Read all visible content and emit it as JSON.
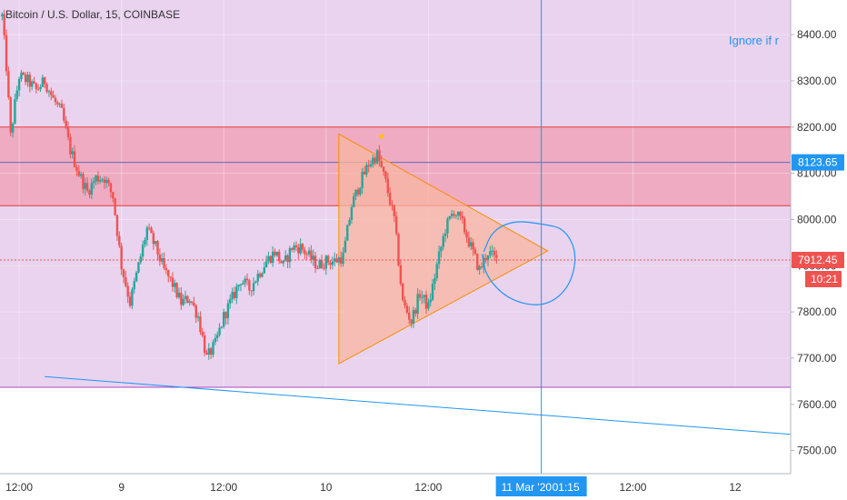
{
  "header": {
    "title": "Bitcoin / U.S. Dollar, 15, COINBASE"
  },
  "annotation": {
    "text": "Ignore if r",
    "color": "#2196f3"
  },
  "colors": {
    "up": "#26a69a",
    "down": "#ef5350",
    "background_zone": "#e9d3ef",
    "supply_zone": "#f0a3ba",
    "zone_line": "#e53935",
    "support_line": "#ab47bc",
    "triangle_fill": "#f8b6a0",
    "triangle_stroke": "#fb8c00",
    "trendline": "#2196f3",
    "crosshair": "#2196f3",
    "last_price_tag": "#ef5350",
    "level_tag": "#2196f3"
  },
  "chart_data": {
    "type": "candlestick",
    "title": "Bitcoin / U.S. Dollar, 15, COINBASE",
    "y_axis": {
      "position": "right",
      "ticks": [
        "8400.00",
        "8300.00",
        "8200.00",
        "8100.00",
        "8000.00",
        "7900.00",
        "7800.00",
        "7700.00",
        "7600.00",
        "7500.00"
      ],
      "range": [
        7450,
        8475
      ]
    },
    "x_axis": {
      "ticks": [
        {
          "label": "12:00",
          "t": 0.0
        },
        {
          "label": "9",
          "t": 12.0
        },
        {
          "label": "12:00",
          "t": 24.0
        },
        {
          "label": "10",
          "t": 36.0
        },
        {
          "label": "12:00",
          "t": 48.0
        },
        {
          "label": "12:00",
          "t": 72.0
        },
        {
          "label": "12",
          "t": 84.0
        }
      ],
      "range": [
        -2.25,
        90.5
      ],
      "cursor": {
        "date": "11 Mar '20",
        "time": "01:15",
        "t": 61.25
      }
    },
    "price_tags": [
      {
        "label": "8123.65",
        "value": 8123.65,
        "kind": "level"
      },
      {
        "label": "7912.45",
        "value": 7912.45,
        "kind": "last"
      },
      {
        "label": "10:21",
        "value": 7865,
        "kind": "countdown"
      }
    ],
    "zones": [
      {
        "name": "range-zone",
        "from": 7637,
        "to": 8475
      },
      {
        "name": "supply-zone",
        "from": 8030,
        "to": 8200
      }
    ],
    "horizontal_lines": [
      {
        "name": "zone-top-line",
        "value": 8200
      },
      {
        "name": "zone-bottom-line",
        "value": 8030
      },
      {
        "name": "support-line",
        "value": 7637
      }
    ],
    "trendline": {
      "points": [
        {
          "t": 3.0,
          "v": 7660
        },
        {
          "t": 90.5,
          "v": 7535
        }
      ]
    },
    "triangle": {
      "points": [
        {
          "t": 37.5,
          "v": 8185
        },
        {
          "t": 62.0,
          "v": 7932
        },
        {
          "t": 37.5,
          "v": 7688
        }
      ]
    },
    "projection_curve": {
      "points": [
        {
          "t": 54.5,
          "v": 7930
        },
        {
          "t": 55.5,
          "v": 7975
        },
        {
          "t": 58.0,
          "v": 7998
        },
        {
          "t": 61.5,
          "v": 7990
        },
        {
          "t": 64.0,
          "v": 7980
        },
        {
          "t": 65.5,
          "v": 7925
        },
        {
          "t": 64.5,
          "v": 7850
        },
        {
          "t": 61.5,
          "v": 7810
        },
        {
          "t": 57.5,
          "v": 7825
        },
        {
          "t": 54.8,
          "v": 7875
        },
        {
          "t": 54.3,
          "v": 7925
        }
      ]
    },
    "peak_marker": {
      "t": 42.5,
      "v": 8172,
      "color": "#ffc107"
    },
    "close_path": [
      {
        "t": -2.0,
        "v": 8440
      },
      {
        "t": -1.5,
        "v": 8330
      },
      {
        "t": -1.0,
        "v": 8180
      },
      {
        "t": -0.5,
        "v": 8250
      },
      {
        "t": 0.0,
        "v": 8310
      },
      {
        "t": 1.0,
        "v": 8300
      },
      {
        "t": 2.0,
        "v": 8280
      },
      {
        "t": 3.0,
        "v": 8300
      },
      {
        "t": 4.0,
        "v": 8260
      },
      {
        "t": 5.0,
        "v": 8230
      },
      {
        "t": 6.0,
        "v": 8150
      },
      {
        "t": 7.0,
        "v": 8100
      },
      {
        "t": 8.0,
        "v": 8060
      },
      {
        "t": 9.0,
        "v": 8090
      },
      {
        "t": 10.0,
        "v": 8090
      },
      {
        "t": 11.0,
        "v": 8050
      },
      {
        "t": 12.0,
        "v": 7900
      },
      {
        "t": 13.0,
        "v": 7820
      },
      {
        "t": 14.0,
        "v": 7900
      },
      {
        "t": 15.0,
        "v": 7980
      },
      {
        "t": 16.0,
        "v": 7940
      },
      {
        "t": 17.0,
        "v": 7890
      },
      {
        "t": 18.0,
        "v": 7860
      },
      {
        "t": 19.0,
        "v": 7820
      },
      {
        "t": 20.0,
        "v": 7830
      },
      {
        "t": 21.0,
        "v": 7790
      },
      {
        "t": 22.0,
        "v": 7700
      },
      {
        "t": 23.0,
        "v": 7730
      },
      {
        "t": 24.0,
        "v": 7790
      },
      {
        "t": 25.0,
        "v": 7830
      },
      {
        "t": 26.0,
        "v": 7870
      },
      {
        "t": 27.0,
        "v": 7850
      },
      {
        "t": 28.0,
        "v": 7880
      },
      {
        "t": 29.0,
        "v": 7910
      },
      {
        "t": 30.0,
        "v": 7930
      },
      {
        "t": 31.0,
        "v": 7900
      },
      {
        "t": 32.0,
        "v": 7940
      },
      {
        "t": 33.0,
        "v": 7940
      },
      {
        "t": 34.0,
        "v": 7920
      },
      {
        "t": 35.0,
        "v": 7900
      },
      {
        "t": 36.0,
        "v": 7910
      },
      {
        "t": 37.0,
        "v": 7910
      },
      {
        "t": 38.0,
        "v": 7920
      },
      {
        "t": 39.0,
        "v": 8030
      },
      {
        "t": 40.0,
        "v": 8080
      },
      {
        "t": 41.0,
        "v": 8120
      },
      {
        "t": 42.0,
        "v": 8140
      },
      {
        "t": 43.0,
        "v": 8080
      },
      {
        "t": 44.0,
        "v": 8000
      },
      {
        "t": 45.0,
        "v": 7820
      },
      {
        "t": 46.0,
        "v": 7780
      },
      {
        "t": 47.0,
        "v": 7840
      },
      {
        "t": 48.0,
        "v": 7810
      },
      {
        "t": 49.0,
        "v": 7900
      },
      {
        "t": 50.0,
        "v": 7980
      },
      {
        "t": 51.0,
        "v": 8020
      },
      {
        "t": 52.0,
        "v": 7990
      },
      {
        "t": 53.0,
        "v": 7940
      },
      {
        "t": 54.0,
        "v": 7890
      },
      {
        "t": 55.0,
        "v": 7930
      },
      {
        "t": 56.0,
        "v": 7912
      }
    ]
  }
}
